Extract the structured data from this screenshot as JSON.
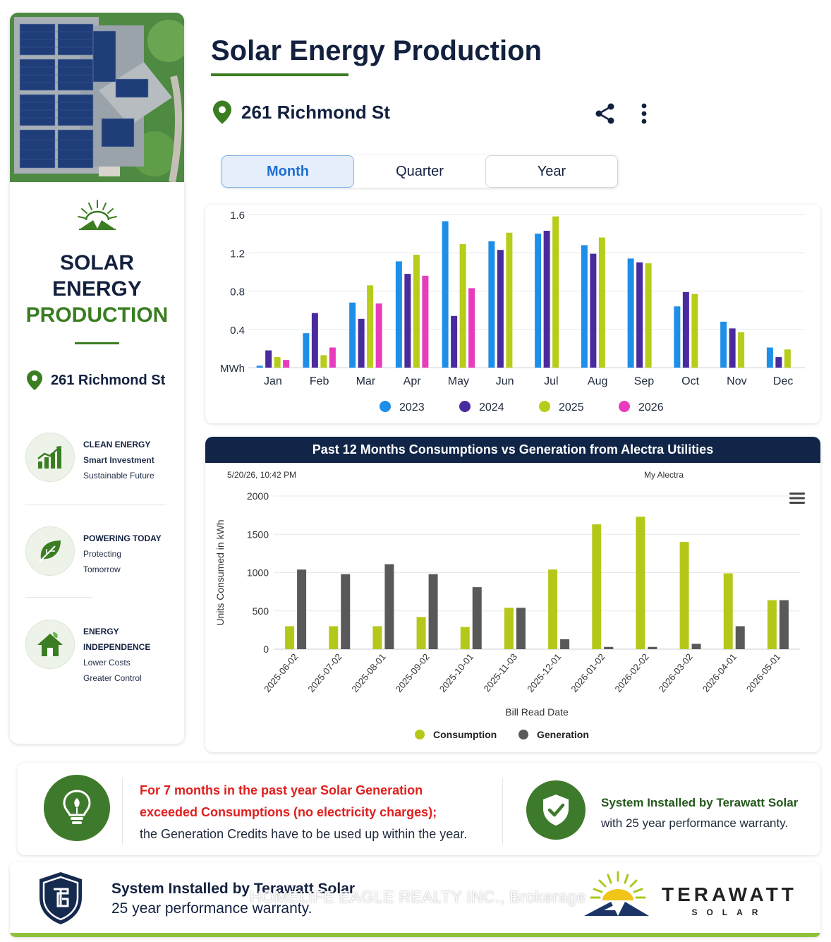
{
  "header": {
    "title": "Solar Energy Production",
    "address": "261 Richmond St"
  },
  "tabs": [
    {
      "label": "Month",
      "active": true
    },
    {
      "label": "Quarter",
      "active": false
    },
    {
      "label": "Year",
      "active": false
    }
  ],
  "sidebar": {
    "title_lines": [
      "SOLAR",
      "ENERGY",
      "PRODUCTION"
    ],
    "address": "261 Richmond St",
    "features": [
      {
        "icon": "chart-growth-icon",
        "heading": "CLEAN ENERGY",
        "lines": [
          "Smart Investment",
          "Sustainable Future"
        ]
      },
      {
        "icon": "leaf-icon",
        "heading": "POWERING TODAY",
        "lines": [
          "Protecting",
          "Tomorrow"
        ]
      },
      {
        "icon": "house-icon",
        "heading": "ENERGY INDEPENDENCE",
        "heading_lines": [
          "ENERGY",
          "INDEPENDENCE"
        ],
        "lines": [
          "Lower Costs",
          "Greater Control"
        ]
      }
    ]
  },
  "consumption_chart": {
    "title": "Past 12 Months Consumptions vs Generation from Alectra Utilities",
    "date": "5/20/26, 10:42 PM",
    "source": "My Alectra"
  },
  "chart_data": [
    {
      "type": "bar",
      "ylabel": "MWh",
      "ylim": [
        0,
        1.6
      ],
      "yticks": [
        "1.6",
        "1.2",
        "0.8",
        "0.4",
        "MWh"
      ],
      "categories": [
        "Jan",
        "Feb",
        "Mar",
        "Apr",
        "May",
        "Jun",
        "Jul",
        "Aug",
        "Sep",
        "Oct",
        "Nov",
        "Dec"
      ],
      "legend_position": "bottom",
      "grid": true,
      "series": [
        {
          "name": "2023",
          "color": "#1e8fe8",
          "values": [
            0.02,
            0.36,
            0.68,
            1.11,
            1.53,
            1.32,
            1.4,
            1.28,
            1.14,
            0.64,
            0.48,
            0.21
          ]
        },
        {
          "name": "2024",
          "color": "#4a2b9e",
          "values": [
            0.18,
            0.57,
            0.51,
            0.98,
            0.54,
            1.23,
            1.43,
            1.19,
            1.1,
            0.79,
            0.41,
            0.11
          ]
        },
        {
          "name": "2025",
          "color": "#b8cc1a",
          "values": [
            0.11,
            0.13,
            0.86,
            1.18,
            1.29,
            1.41,
            1.58,
            1.36,
            1.09,
            0.77,
            0.37,
            0.19
          ]
        },
        {
          "name": "2026",
          "color": "#e83cbd",
          "values": [
            0.08,
            0.21,
            0.67,
            0.96,
            0.83,
            null,
            null,
            null,
            null,
            null,
            null,
            null
          ]
        }
      ]
    },
    {
      "type": "bar",
      "xlabel": "Bill Read Date",
      "ylabel": "Units Consumed in kWh",
      "ylim": [
        0,
        2000
      ],
      "yticks": [
        0,
        500,
        1000,
        1500,
        2000
      ],
      "categories": [
        "2025-06-02",
        "2025-07-02",
        "2025-08-01",
        "2025-09-02",
        "2025-10-01",
        "2025-11-03",
        "2025-12-01",
        "2026-01-02",
        "2026-02-02",
        "2026-03-02",
        "2026-04-01",
        "2026-05-01"
      ],
      "legend_position": "bottom",
      "grid": true,
      "series": [
        {
          "name": "Consumption",
          "color": "#b5c81a",
          "values": [
            300,
            300,
            300,
            420,
            290,
            540,
            1040,
            1630,
            1730,
            1400,
            990,
            640
          ]
        },
        {
          "name": "Generation",
          "color": "#595959",
          "values": [
            1040,
            980,
            1110,
            980,
            810,
            540,
            130,
            30,
            30,
            70,
            300,
            640
          ]
        }
      ]
    }
  ],
  "info": {
    "red_lines": [
      "For 7 months in the past year Solar Generation",
      "exceeded Consumptions (no electricity charges);"
    ],
    "dark_line": "the Generation Credits have to be used up within the year.",
    "installer_bold": "System Installed by Terawatt Solar",
    "installer_text": "with 25 year performance warranty."
  },
  "footer": {
    "line1": "System Installed by Terawatt Solar",
    "line2": "25 year performance warranty.",
    "watermark": "HOMELIFE EAGLE REALTY INC., Brokerage",
    "brand_name": "TERAWATT",
    "brand_sub": "SOLAR"
  },
  "colors": {
    "navy": "#13213f",
    "green": "#3b7d22",
    "accent_blue": "#1d6fd0",
    "alert_red": "#e01e1e"
  }
}
